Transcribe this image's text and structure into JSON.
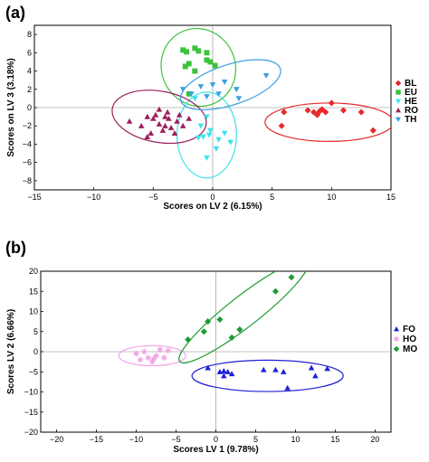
{
  "chart_data": [
    {
      "type": "scatter",
      "panel_label": "(a)",
      "xlabel": "Scores on LV 2 (6.15%)",
      "ylabel": "Scores on LV 3 (3.18%)",
      "xlim": [
        -15,
        15
      ],
      "ylim": [
        -9,
        9
      ],
      "xticks": [
        -15,
        -10,
        -5,
        0,
        5,
        10,
        15
      ],
      "yticks": [
        -8,
        -6,
        -4,
        -2,
        0,
        2,
        4,
        6,
        8
      ],
      "zero_lines": true,
      "legend_position": "right",
      "series": [
        {
          "name": "BL",
          "marker": "diamond",
          "color": "#e8282a",
          "points": [
            [
              6.0,
              -0.5
            ],
            [
              5.8,
              -2.0
            ],
            [
              8.0,
              -0.3
            ],
            [
              8.5,
              -0.5
            ],
            [
              8.8,
              -0.8
            ],
            [
              9.2,
              -0.2
            ],
            [
              9.5,
              -0.5
            ],
            [
              10.0,
              0.5
            ],
            [
              11.0,
              -0.3
            ],
            [
              12.5,
              -0.5
            ],
            [
              13.5,
              -2.5
            ],
            [
              9.0,
              -0.4
            ]
          ],
          "ellipse": {
            "cx": 9.8,
            "cy": -1.6,
            "rx": 5.4,
            "ry": 2.1,
            "angle": 0
          }
        },
        {
          "name": "EU",
          "marker": "square",
          "color": "#3cc23c",
          "points": [
            [
              -2.5,
              6.3
            ],
            [
              -2.2,
              6.1
            ],
            [
              -1.5,
              6.5
            ],
            [
              -1.2,
              6.2
            ],
            [
              -0.5,
              6.0
            ],
            [
              -0.2,
              5.0
            ],
            [
              -2.3,
              4.5
            ],
            [
              -1.5,
              4.0
            ],
            [
              0.2,
              4.6
            ],
            [
              -2.0,
              1.5
            ],
            [
              -0.5,
              5.2
            ],
            [
              -2.0,
              4.8
            ]
          ],
          "ellipse": {
            "cx": -1.2,
            "cy": 4.4,
            "rx": 3.1,
            "ry": 4.3,
            "angle": 25
          }
        },
        {
          "name": "HE",
          "marker": "triangle-down",
          "color": "#39e3ee",
          "points": [
            [
              -1.5,
              1.0
            ],
            [
              -0.5,
              -1.0
            ],
            [
              -1.0,
              -2.0
            ],
            [
              -0.3,
              -3.0
            ],
            [
              0.5,
              -3.5
            ],
            [
              -1.2,
              -3.3
            ],
            [
              0.3,
              -4.5
            ],
            [
              -0.5,
              -5.5
            ],
            [
              1.5,
              -3.8
            ],
            [
              -0.2,
              -2.5
            ],
            [
              -0.8,
              -3.2
            ],
            [
              1.0,
              -2.8
            ]
          ],
          "ellipse": {
            "cx": -0.5,
            "cy": -3.0,
            "rx": 2.5,
            "ry": 4.7,
            "angle": 0
          }
        },
        {
          "name": "RO",
          "marker": "triangle",
          "color": "#9b1f5b",
          "points": [
            [
              -7.0,
              -1.5
            ],
            [
              -6.0,
              -2.0
            ],
            [
              -5.5,
              -1.0
            ],
            [
              -5.0,
              -1.2
            ],
            [
              -4.5,
              -1.8
            ],
            [
              -4.0,
              -2.0
            ],
            [
              -3.5,
              -2.2
            ],
            [
              -3.0,
              -1.5
            ],
            [
              -4.2,
              -2.5
            ],
            [
              -5.2,
              -2.8
            ],
            [
              -3.8,
              -0.5
            ],
            [
              -2.5,
              -2.0
            ],
            [
              -2.0,
              -1.2
            ],
            [
              -4.8,
              -0.8
            ],
            [
              -3.2,
              -2.8
            ],
            [
              -5.5,
              -3.2
            ],
            [
              -4.5,
              -0.2
            ],
            [
              -3.7,
              -1.2
            ],
            [
              -2.8,
              -0.8
            ],
            [
              -4.0,
              -1.0
            ]
          ],
          "ellipse": {
            "cx": -4.5,
            "cy": -1.0,
            "rx": 4.0,
            "ry": 2.8,
            "angle": -10
          }
        },
        {
          "name": "TH",
          "marker": "triangle-down",
          "color": "#3a9fe0",
          "points": [
            [
              -2.5,
              2.0
            ],
            [
              -1.8,
              1.5
            ],
            [
              -1.0,
              2.3
            ],
            [
              0.0,
              2.5
            ],
            [
              1.0,
              2.8
            ],
            [
              2.0,
              2.0
            ],
            [
              4.5,
              3.5
            ],
            [
              -0.5,
              1.2
            ],
            [
              2.2,
              1.0
            ],
            [
              0.5,
              1.5
            ]
          ],
          "ellipse": {
            "cx": 1.5,
            "cy": 2.5,
            "rx": 4.4,
            "ry": 2.2,
            "angle": 18
          }
        }
      ]
    },
    {
      "type": "scatter",
      "panel_label": "(b)",
      "xlabel": "Scores LV 1 (9.78%)",
      "ylabel": "Scores LV 2 (6.66%)",
      "xlim": [
        -22,
        22
      ],
      "ylim": [
        -20,
        20
      ],
      "xticks": [
        -20,
        -15,
        -10,
        -5,
        0,
        5,
        10,
        15,
        20
      ],
      "yticks": [
        -20,
        -15,
        -10,
        -5,
        0,
        5,
        10,
        15,
        20
      ],
      "zero_lines": true,
      "legend_position": "right",
      "series": [
        {
          "name": "FO",
          "marker": "triangle",
          "color": "#1f1fd6",
          "points": [
            [
              -1.0,
              -4.0
            ],
            [
              0.5,
              -5.0
            ],
            [
              1.0,
              -6.0
            ],
            [
              1.5,
              -5.0
            ],
            [
              2.0,
              -5.5
            ],
            [
              6.0,
              -4.5
            ],
            [
              7.5,
              -4.5
            ],
            [
              8.5,
              -5.0
            ],
            [
              9.0,
              -9.0
            ],
            [
              12.0,
              -4.0
            ],
            [
              12.5,
              -6.0
            ],
            [
              14.0,
              -4.2
            ],
            [
              1.0,
              -4.8
            ]
          ],
          "ellipse": {
            "cx": 6.5,
            "cy": -6.0,
            "rx": 9.5,
            "ry": 3.9,
            "angle": 0
          }
        },
        {
          "name": "HO",
          "marker": "asterisk",
          "color": "#f2a2e5",
          "points": [
            [
              -10.0,
              -0.5
            ],
            [
              -9.5,
              -2.0
            ],
            [
              -8.5,
              -1.5
            ],
            [
              -7.5,
              -1.0
            ],
            [
              -7.0,
              0.5
            ],
            [
              -6.5,
              -1.5
            ],
            [
              -8.0,
              -2.5
            ],
            [
              -9.0,
              0.0
            ],
            [
              -6.0,
              0.3
            ],
            [
              -7.8,
              -1.8
            ]
          ],
          "ellipse": {
            "cx": -8.0,
            "cy": -1.0,
            "rx": 4.2,
            "ry": 2.5,
            "angle": 0
          }
        },
        {
          "name": "MO",
          "marker": "diamond",
          "color": "#1e9a33",
          "points": [
            [
              -3.5,
              3.0
            ],
            [
              -1.5,
              5.0
            ],
            [
              0.5,
              8.0
            ],
            [
              2.0,
              3.5
            ],
            [
              3.0,
              5.5
            ],
            [
              7.5,
              15.0
            ],
            [
              9.5,
              18.5
            ],
            [
              -1.0,
              7.5
            ]
          ],
          "ellipse": {
            "cx": 3.5,
            "cy": 10.0,
            "rx": 10.2,
            "ry": 3.8,
            "angle": 38
          }
        }
      ]
    }
  ]
}
